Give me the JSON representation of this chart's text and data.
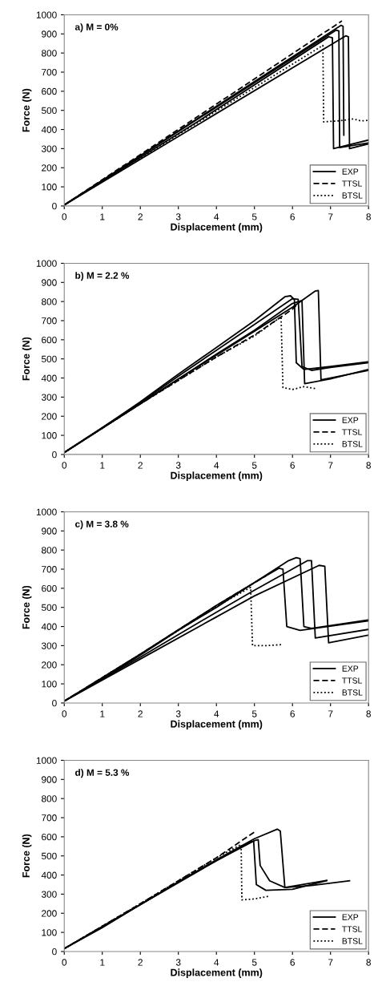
{
  "chart_data": [
    {
      "type": "line",
      "xlabel": "Displacement (mm)",
      "ylabel": "Force (N)",
      "annotations": [
        "a) M = 0%"
      ],
      "xlim": [
        0,
        8
      ],
      "ylim": [
        0,
        1000
      ],
      "xticks": [
        0,
        1,
        2,
        3,
        4,
        5,
        6,
        7,
        8
      ],
      "yticks": [
        0,
        100,
        200,
        300,
        400,
        500,
        600,
        700,
        800,
        900,
        1000
      ],
      "legend": "bottom right",
      "grid": false,
      "series": [
        {
          "name": "EXP",
          "color": "#000000",
          "line_style": "solid",
          "x": [
            0,
            3.5,
            6.95,
            7.05,
            7.08,
            8
          ],
          "values": [
            5,
            440,
            885,
            880,
            300,
            345
          ]
        },
        {
          "color": "#000000",
          "line_style": "solid",
          "x": [
            0,
            7.15,
            7.22,
            7.24,
            8
          ],
          "values": [
            5,
            920,
            915,
            305,
            330
          ]
        },
        {
          "color": "#000000",
          "line_style": "solid",
          "x": [
            0,
            7.28,
            7.33,
            7.35
          ],
          "values": [
            5,
            945,
            940,
            370
          ]
        },
        {
          "color": "#000000",
          "line_style": "solid",
          "x": [
            0,
            7.4,
            7.47,
            7.5,
            8
          ],
          "values": [
            5,
            890,
            885,
            300,
            325
          ]
        },
        {
          "name": "TTSL",
          "color": "#000000",
          "line_style": "dashed",
          "x": [
            0,
            7.3
          ],
          "values": [
            5,
            968
          ]
        },
        {
          "name": "BTSL",
          "color": "#000000",
          "line_style": "dotted",
          "x": [
            0,
            6.8,
            6.82,
            7.2,
            7.6,
            7.8,
            8
          ],
          "values": [
            5,
            840,
            440,
            445,
            455,
            445,
            448
          ]
        }
      ]
    },
    {
      "type": "line",
      "xlabel": "Displacement (mm)",
      "ylabel": "Force (N)",
      "annotations": [
        "b) M = 2.2 %"
      ],
      "xlim": [
        0,
        8
      ],
      "ylim": [
        0,
        1000
      ],
      "xticks": [
        0,
        1,
        2,
        3,
        4,
        5,
        6,
        7,
        8
      ],
      "yticks": [
        0,
        100,
        200,
        300,
        400,
        500,
        600,
        700,
        800,
        900,
        1000
      ],
      "legend": "bottom right",
      "grid": false,
      "series": [
        {
          "name": "EXP",
          "color": "#000000",
          "line_style": "solid",
          "x": [
            0,
            1,
            2,
            3,
            4,
            5,
            5.8,
            5.95,
            6.05,
            6.1,
            6.3,
            7,
            8
          ],
          "values": [
            10,
            140,
            275,
            420,
            560,
            700,
            825,
            830,
            810,
            480,
            445,
            460,
            485
          ]
        },
        {
          "color": "#000000",
          "line_style": "solid",
          "x": [
            0,
            1,
            2,
            3,
            4,
            5,
            6,
            6.15,
            6.25,
            6.5,
            7,
            8
          ],
          "values": [
            10,
            140,
            270,
            410,
            545,
            680,
            815,
            812,
            460,
            440,
            455,
            480
          ]
        },
        {
          "color": "#000000",
          "line_style": "solid",
          "x": [
            0,
            2,
            3,
            4,
            5,
            6,
            6.6,
            6.68,
            6.75,
            8
          ],
          "values": [
            10,
            265,
            395,
            520,
            645,
            770,
            855,
            858,
            390,
            440
          ]
        },
        {
          "color": "#000000",
          "line_style": "solid",
          "x": [
            0,
            2,
            4,
            5,
            6,
            6.25,
            6.32,
            7,
            8
          ],
          "values": [
            10,
            265,
            525,
            650,
            790,
            805,
            370,
            395,
            445
          ]
        },
        {
          "name": "TTSL",
          "color": "#000000",
          "line_style": "dashed",
          "x": [
            0,
            2,
            4,
            5,
            6,
            6.1
          ],
          "values": [
            10,
            265,
            510,
            625,
            760,
            780
          ]
        },
        {
          "name": "BTSL",
          "color": "#000000",
          "line_style": "dotted",
          "x": [
            0,
            2,
            4,
            5,
            5.7,
            5.75,
            6,
            6.3,
            6.6
          ],
          "values": [
            10,
            265,
            510,
            620,
            720,
            350,
            340,
            355,
            345
          ]
        }
      ]
    },
    {
      "type": "line",
      "xlabel": "Displacement (mm)",
      "ylabel": "Force (N)",
      "annotations": [
        "c) M = 3.8 %"
      ],
      "xlim": [
        0,
        8
      ],
      "ylim": [
        0,
        1000
      ],
      "xticks": [
        0,
        1,
        2,
        3,
        4,
        5,
        6,
        7,
        8
      ],
      "yticks": [
        0,
        100,
        200,
        300,
        400,
        500,
        600,
        700,
        800,
        900,
        1000
      ],
      "legend": "bottom right",
      "grid": false,
      "series": [
        {
          "name": "EXP",
          "color": "#000000",
          "line_style": "solid",
          "x": [
            0,
            1,
            2,
            3,
            4,
            5,
            5.65,
            5.75,
            5.85,
            6.2,
            8
          ],
          "values": [
            10,
            125,
            250,
            380,
            500,
            630,
            705,
            700,
            400,
            380,
            430
          ]
        },
        {
          "color": "#000000",
          "line_style": "solid",
          "x": [
            0,
            2,
            4,
            5,
            5.9,
            6.1,
            6.2,
            6.3,
            6.5,
            8
          ],
          "values": [
            10,
            255,
            510,
            630,
            745,
            760,
            755,
            400,
            390,
            435
          ]
        },
        {
          "color": "#000000",
          "line_style": "solid",
          "x": [
            0,
            2,
            4,
            5,
            6.4,
            6.5,
            6.6,
            8
          ],
          "values": [
            10,
            240,
            475,
            590,
            745,
            745,
            340,
            385
          ]
        },
        {
          "color": "#000000",
          "line_style": "solid",
          "x": [
            0,
            2,
            4,
            5,
            6.7,
            6.85,
            6.95,
            8
          ],
          "values": [
            10,
            230,
            450,
            560,
            720,
            715,
            315,
            355
          ]
        },
        {
          "name": "TTSL",
          "color": "#000000",
          "line_style": "dashed",
          "x": [
            0,
            2,
            4,
            5.3
          ],
          "values": [
            10,
            255,
            510,
            665
          ]
        },
        {
          "name": "BTSL",
          "color": "#000000",
          "line_style": "dotted",
          "x": [
            0,
            2,
            4,
            4.9,
            4.95,
            5.3,
            5.7
          ],
          "values": [
            10,
            255,
            505,
            605,
            300,
            300,
            305
          ]
        }
      ]
    },
    {
      "type": "line",
      "xlabel": "Displacement (mm)",
      "ylabel": "Force (N)",
      "annotations": [
        "d) M = 5.3 %"
      ],
      "xlim": [
        0,
        8
      ],
      "ylim": [
        0,
        1000
      ],
      "xticks": [
        0,
        1,
        2,
        3,
        4,
        5,
        6,
        7,
        8
      ],
      "yticks": [
        0,
        100,
        200,
        300,
        400,
        500,
        600,
        700,
        800,
        900,
        1000
      ],
      "legend": "bottom right",
      "grid": false,
      "series": [
        {
          "name": "EXP",
          "color": "#000000",
          "line_style": "solid",
          "x": [
            0,
            1,
            2,
            3,
            4,
            4.9,
            4.98,
            5.05,
            5.3,
            6,
            6.9
          ],
          "values": [
            15,
            125,
            245,
            365,
            475,
            575,
            575,
            350,
            320,
            325,
            370
          ]
        },
        {
          "color": "#000000",
          "line_style": "solid",
          "x": [
            0,
            2,
            4,
            5,
            5.6,
            5.68,
            5.8,
            6.5,
            7.5
          ],
          "values": [
            15,
            245,
            480,
            590,
            640,
            630,
            335,
            345,
            370
          ]
        },
        {
          "color": "#000000",
          "line_style": "solid",
          "x": [
            0,
            2,
            4,
            5,
            5.1,
            5.15,
            5.4,
            5.8,
            6.9
          ],
          "values": [
            15,
            245,
            475,
            580,
            585,
            450,
            370,
            335,
            372
          ]
        },
        {
          "name": "TTSL",
          "color": "#000000",
          "line_style": "dashed",
          "x": [
            0,
            2,
            4,
            5
          ],
          "values": [
            15,
            250,
            490,
            625
          ]
        },
        {
          "name": "BTSL",
          "color": "#000000",
          "line_style": "dotted",
          "x": [
            0,
            2,
            4,
            4.65,
            4.67,
            5,
            5.4
          ],
          "values": [
            15,
            250,
            490,
            560,
            270,
            275,
            290
          ]
        }
      ]
    }
  ]
}
